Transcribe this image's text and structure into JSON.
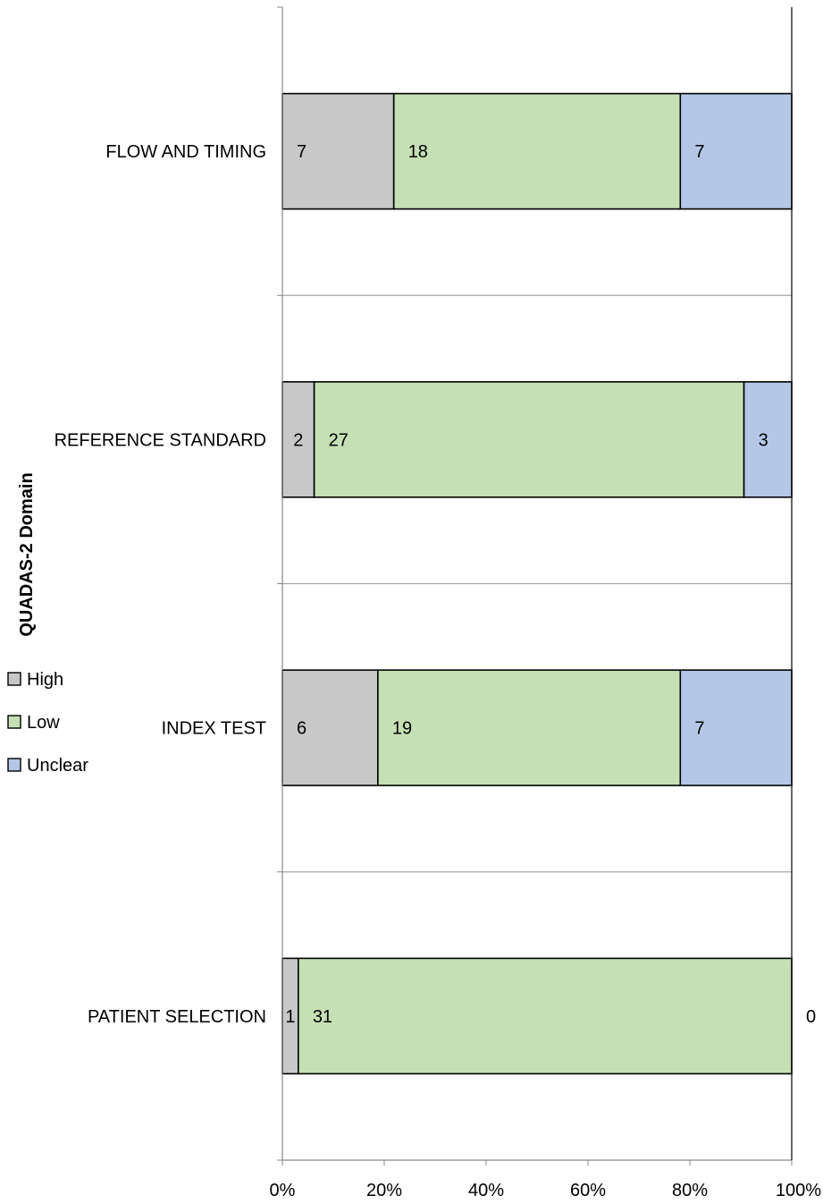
{
  "chart_data": {
    "type": "bar",
    "orientation": "horizontal",
    "stacked": "percent",
    "ylabel": "QUADAS-2 Domain",
    "xlabel": "",
    "xlim": [
      0,
      100
    ],
    "x_ticks": [
      "0%",
      "20%",
      "40%",
      "60%",
      "80%",
      "100%"
    ],
    "categories": [
      "PATIENT SELECTION",
      "INDEX TEST",
      "REFERENCE STANDARD",
      "FLOW AND TIMING"
    ],
    "series": [
      {
        "name": "High",
        "color": "#c8c8c8",
        "values": [
          1,
          6,
          2,
          7
        ]
      },
      {
        "name": "Low",
        "color": "#c5e0b4",
        "values": [
          31,
          19,
          27,
          18
        ]
      },
      {
        "name": "Unclear",
        "color": "#b4c7e7",
        "values": [
          0,
          7,
          3,
          7
        ]
      }
    ],
    "legend_position": "left",
    "grid": "horizontal category separators"
  }
}
